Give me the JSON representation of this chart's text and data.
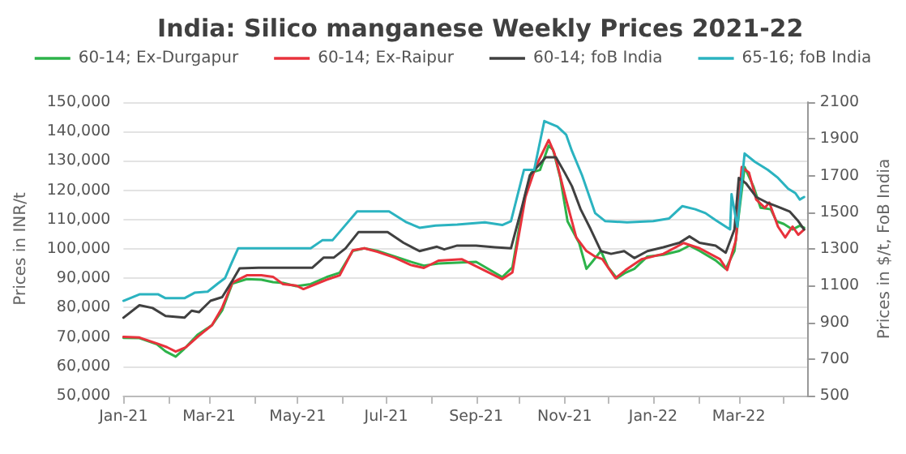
{
  "chart_data": {
    "type": "line",
    "title": "India: Silico manganese Weekly Prices 2021-22",
    "ylabel": "Prices in INR/t",
    "y2label": "Prices in $/t, FoB India",
    "xlim": [
      "2021-01-01",
      "2022-04-17"
    ],
    "xticks": [
      {
        "value": "2021-01-01",
        "label": "Jan-21"
      },
      {
        "value": "2021-02-01",
        "label": null
      },
      {
        "value": "2021-03-01",
        "label": "Mar-21"
      },
      {
        "value": "2021-04-01",
        "label": null
      },
      {
        "value": "2021-05-01",
        "label": "May-21"
      },
      {
        "value": "2021-06-01",
        "label": null
      },
      {
        "value": "2021-07-01",
        "label": "Jul-21"
      },
      {
        "value": "2021-08-01",
        "label": null
      },
      {
        "value": "2021-09-01",
        "label": "Sep-21"
      },
      {
        "value": "2021-10-01",
        "label": null
      },
      {
        "value": "2021-11-01",
        "label": "Nov-21"
      },
      {
        "value": "2021-12-01",
        "label": null
      },
      {
        "value": "2022-01-01",
        "label": "Jan-22"
      },
      {
        "value": "2022-02-01",
        "label": null
      },
      {
        "value": "2022-03-01",
        "label": "Mar-22"
      },
      {
        "value": "2022-04-01",
        "label": null
      }
    ],
    "ylim": [
      50000,
      150000
    ],
    "yticks": [
      {
        "value": 50000,
        "label": "50,000"
      },
      {
        "value": 60000,
        "label": "60,000"
      },
      {
        "value": 70000,
        "label": "70,000"
      },
      {
        "value": 80000,
        "label": "80,000"
      },
      {
        "value": 90000,
        "label": "90,000"
      },
      {
        "value": 100000,
        "label": "100,000"
      },
      {
        "value": 110000,
        "label": "110,000"
      },
      {
        "value": 120000,
        "label": "120,000"
      },
      {
        "value": 130000,
        "label": "130,000"
      },
      {
        "value": 140000,
        "label": "140,000"
      },
      {
        "value": 150000,
        "label": "150,000"
      }
    ],
    "y2lim": [
      500,
      2100
    ],
    "y2ticks": [
      500,
      700,
      900,
      1100,
      1300,
      1500,
      1700,
      1900,
      2100
    ],
    "grid": "y",
    "legend": "top",
    "marker": "none",
    "line_style": "solid",
    "series": [
      {
        "name": "60-14; Ex-Durgapur",
        "color": "#2db34a",
        "x": [
          "2021-01-01",
          "2021-01-12",
          "2021-01-24",
          "2021-01-30",
          "2021-02-06",
          "2021-02-12",
          "2021-02-21",
          "2021-03-03",
          "2021-03-10",
          "2021-03-17",
          "2021-03-27",
          "2021-04-06",
          "2021-04-14",
          "2021-04-21",
          "2021-04-30",
          "2021-05-10",
          "2021-05-21",
          "2021-05-30",
          "2021-06-08",
          "2021-06-16",
          "2021-06-25",
          "2021-07-07",
          "2021-07-18",
          "2021-07-27",
          "2021-08-06",
          "2021-08-22",
          "2021-09-01",
          "2021-09-19",
          "2021-09-26",
          "2021-10-04",
          "2021-10-09",
          "2021-10-15",
          "2021-10-21",
          "2021-10-24",
          "2021-10-29",
          "2021-11-03",
          "2021-11-11",
          "2021-11-16",
          "2021-11-20",
          "2021-11-26",
          "2021-12-01",
          "2021-12-07",
          "2021-12-13",
          "2021-12-19",
          "2021-12-28",
          "2022-01-08",
          "2022-01-19",
          "2022-01-26",
          "2022-02-02",
          "2022-02-13",
          "2022-02-20",
          "2022-02-26",
          "2022-03-05",
          "2022-03-11",
          "2022-03-16",
          "2022-03-23",
          "2022-03-27",
          "2022-04-01",
          "2022-04-07",
          "2022-04-12",
          "2022-04-15"
        ],
        "values": [
          69700,
          69600,
          67500,
          65100,
          63300,
          66000,
          70700,
          74000,
          79000,
          88200,
          89700,
          89500,
          88700,
          88400,
          87300,
          88000,
          90400,
          91900,
          99300,
          100200,
          99300,
          97400,
          95600,
          94300,
          95000,
          95400,
          95600,
          90400,
          93700,
          116800,
          126000,
          126900,
          135200,
          133800,
          124200,
          109400,
          102000,
          93200,
          95600,
          99300,
          93700,
          90000,
          91900,
          93200,
          97400,
          98000,
          99300,
          101100,
          99300,
          96100,
          93200,
          99300,
          127900,
          121400,
          114000,
          113500,
          109400,
          108500,
          106600,
          107900,
          107200
        ]
      },
      {
        "name": "60-14; Ex-Raipur",
        "color": "#e8323c",
        "x": [
          "2021-01-01",
          "2021-01-12",
          "2021-01-24",
          "2021-01-31",
          "2021-02-06",
          "2021-02-13",
          "2021-02-21",
          "2021-03-03",
          "2021-03-10",
          "2021-03-17",
          "2021-03-27",
          "2021-04-06",
          "2021-04-14",
          "2021-04-21",
          "2021-04-30",
          "2021-05-05",
          "2021-05-21",
          "2021-05-30",
          "2021-06-08",
          "2021-06-16",
          "2021-06-25",
          "2021-07-07",
          "2021-07-18",
          "2021-07-27",
          "2021-08-06",
          "2021-08-22",
          "2021-09-19",
          "2021-09-26",
          "2021-10-05",
          "2021-10-12",
          "2021-10-21",
          "2021-10-25",
          "2021-11-02",
          "2021-11-09",
          "2021-11-16",
          "2021-11-22",
          "2021-11-27",
          "2021-12-06",
          "2021-12-13",
          "2021-12-24",
          "2022-01-08",
          "2022-01-22",
          "2022-02-02",
          "2022-02-16",
          "2022-02-21",
          "2022-02-27",
          "2022-03-03",
          "2022-03-08",
          "2022-03-13",
          "2022-03-19",
          "2022-03-22",
          "2022-03-28",
          "2022-04-02",
          "2022-04-07",
          "2022-04-11",
          "2022-04-15"
        ],
        "values": [
          70000,
          69800,
          67800,
          66500,
          65000,
          66500,
          70000,
          74000,
          80000,
          88500,
          91000,
          91000,
          90500,
          88000,
          87500,
          86300,
          89500,
          91000,
          99500,
          100200,
          99000,
          97000,
          94500,
          93500,
          96000,
          96500,
          89700,
          92000,
          117700,
          127900,
          137100,
          132500,
          116800,
          103900,
          99300,
          97400,
          96500,
          90000,
          92800,
          96500,
          98300,
          102000,
          100200,
          96500,
          92800,
          103000,
          127900,
          126000,
          116800,
          114000,
          115800,
          107600,
          103900,
          107600,
          104800,
          106600
        ]
      },
      {
        "name": "60-14; foB India",
        "color": "#404040",
        "axis": "y2",
        "x": [
          "2021-01-01",
          "2021-01-12",
          "2021-01-21",
          "2021-01-30",
          "2021-02-12",
          "2021-02-17",
          "2021-02-22",
          "2021-03-02",
          "2021-03-10",
          "2021-03-17",
          "2021-03-22",
          "2021-04-04",
          "2021-05-11",
          "2021-05-19",
          "2021-05-26",
          "2021-06-03",
          "2021-06-12",
          "2021-07-02",
          "2021-07-13",
          "2021-07-24",
          "2021-08-05",
          "2021-08-10",
          "2021-08-19",
          "2021-09-01",
          "2021-09-14",
          "2021-09-25",
          "2021-10-02",
          "2021-10-08",
          "2021-10-19",
          "2021-10-26",
          "2021-11-01",
          "2021-11-06",
          "2021-11-12",
          "2021-11-19",
          "2021-11-26",
          "2021-12-03",
          "2021-12-12",
          "2021-12-19",
          "2021-12-28",
          "2022-01-08",
          "2022-01-19",
          "2022-01-26",
          "2022-02-02",
          "2022-02-13",
          "2022-02-20",
          "2022-02-26",
          "2022-03-01",
          "2022-03-06",
          "2022-03-13",
          "2022-03-20",
          "2022-03-27",
          "2022-04-05",
          "2022-04-11",
          "2022-04-15"
        ],
        "values": [
          925,
          993,
          978,
          934,
          925,
          963,
          955,
          1017,
          1037,
          1126,
          1194,
          1197,
          1197,
          1253,
          1253,
          1303,
          1392,
          1392,
          1333,
          1288,
          1312,
          1297,
          1318,
          1318,
          1309,
          1303,
          1510,
          1701,
          1799,
          1799,
          1716,
          1642,
          1516,
          1406,
          1288,
          1273,
          1288,
          1250,
          1288,
          1309,
          1333,
          1368,
          1333,
          1318,
          1279,
          1406,
          1687,
          1657,
          1583,
          1554,
          1533,
          1504,
          1451,
          1406
        ]
      },
      {
        "name": "65-16; foB India",
        "color": "#2bb3c0",
        "axis": "y2",
        "x": [
          "2021-01-01",
          "2021-01-12",
          "2021-01-25",
          "2021-01-30",
          "2021-02-12",
          "2021-02-19",
          "2021-02-28",
          "2021-03-07",
          "2021-03-12",
          "2021-03-16",
          "2021-03-21",
          "2021-04-03",
          "2021-05-10",
          "2021-05-18",
          "2021-05-25",
          "2021-06-02",
          "2021-06-11",
          "2021-07-03",
          "2021-07-15",
          "2021-07-24",
          "2021-08-04",
          "2021-08-19",
          "2021-09-07",
          "2021-09-19",
          "2021-09-25",
          "2021-10-04",
          "2021-10-11",
          "2021-10-18",
          "2021-10-27",
          "2021-11-02",
          "2021-11-06",
          "2021-11-13",
          "2021-11-22",
          "2021-11-29",
          "2021-12-14",
          "2022-01-01",
          "2022-01-12",
          "2022-01-21",
          "2022-01-30",
          "2022-02-06",
          "2022-02-13",
          "2022-02-23",
          "2022-02-24",
          "2022-02-28",
          "2022-03-05",
          "2022-03-12",
          "2022-03-21",
          "2022-03-28",
          "2022-04-04",
          "2022-04-09",
          "2022-04-12",
          "2022-04-15"
        ],
        "values": [
          1017,
          1052,
          1052,
          1031,
          1031,
          1061,
          1067,
          1111,
          1141,
          1214,
          1303,
          1303,
          1303,
          1347,
          1347,
          1421,
          1504,
          1504,
          1445,
          1415,
          1427,
          1433,
          1445,
          1430,
          1451,
          1731,
          1731,
          1997,
          1967,
          1923,
          1834,
          1701,
          1495,
          1451,
          1445,
          1451,
          1466,
          1533,
          1516,
          1495,
          1457,
          1406,
          1598,
          1421,
          1820,
          1775,
          1731,
          1687,
          1628,
          1604,
          1569,
          1583
        ]
      }
    ]
  }
}
